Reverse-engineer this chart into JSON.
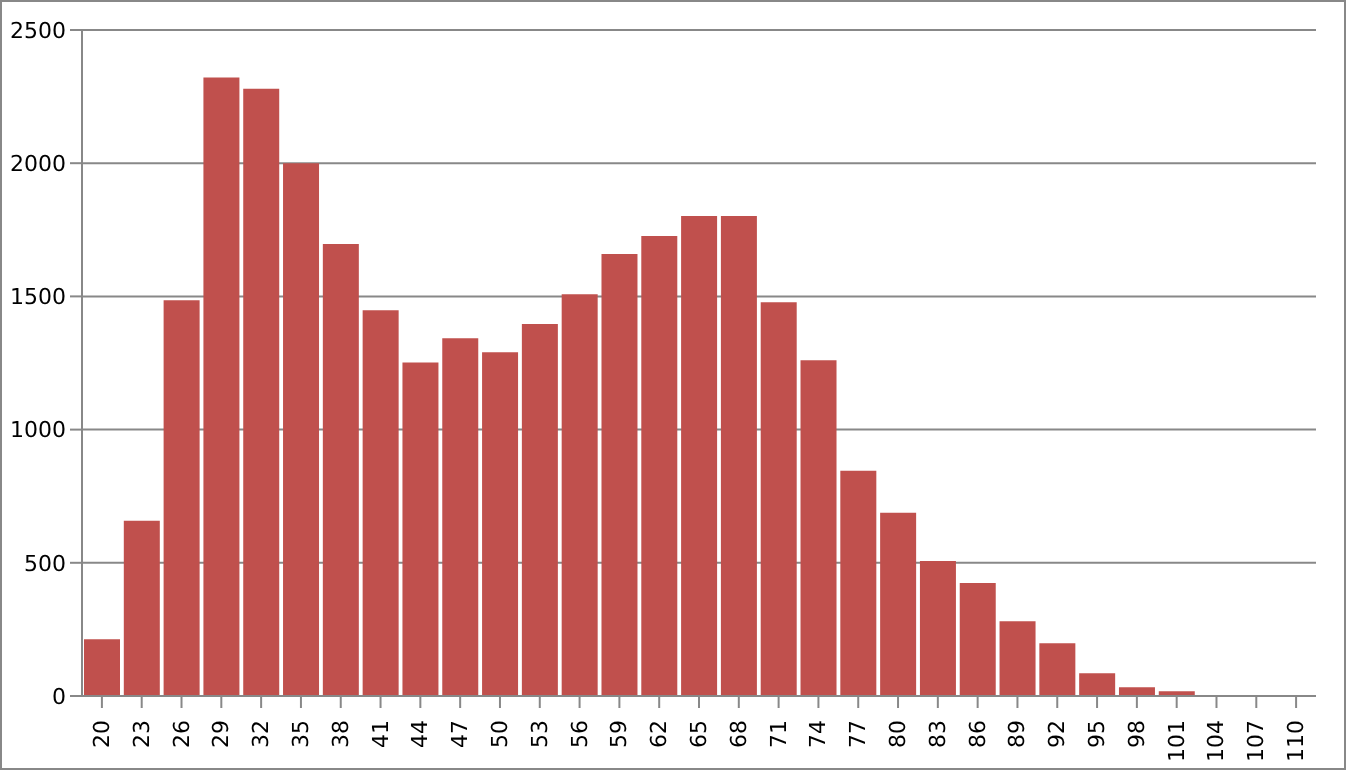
{
  "chart_data": {
    "type": "bar",
    "categories": [
      "20",
      "23",
      "26",
      "29",
      "32",
      "35",
      "38",
      "41",
      "44",
      "47",
      "50",
      "53",
      "56",
      "59",
      "62",
      "65",
      "68",
      "71",
      "74",
      "77",
      "80",
      "83",
      "86",
      "89",
      "92",
      "95",
      "98",
      "101",
      "104",
      "107",
      "110"
    ],
    "values": [
      213,
      658,
      1486,
      2322,
      2279,
      2000,
      1697,
      1448,
      1252,
      1343,
      1290,
      1396,
      1508,
      1659,
      1727,
      1802,
      1802,
      1478,
      1260,
      846,
      688,
      507,
      424,
      281,
      198,
      85,
      33,
      18,
      0,
      0,
      0
    ],
    "color": "#c0504d",
    "ylim": [
      0,
      2500
    ],
    "yticks": [
      0,
      500,
      1000,
      1500,
      2000,
      2500
    ],
    "grid": "y",
    "legend": false
  }
}
